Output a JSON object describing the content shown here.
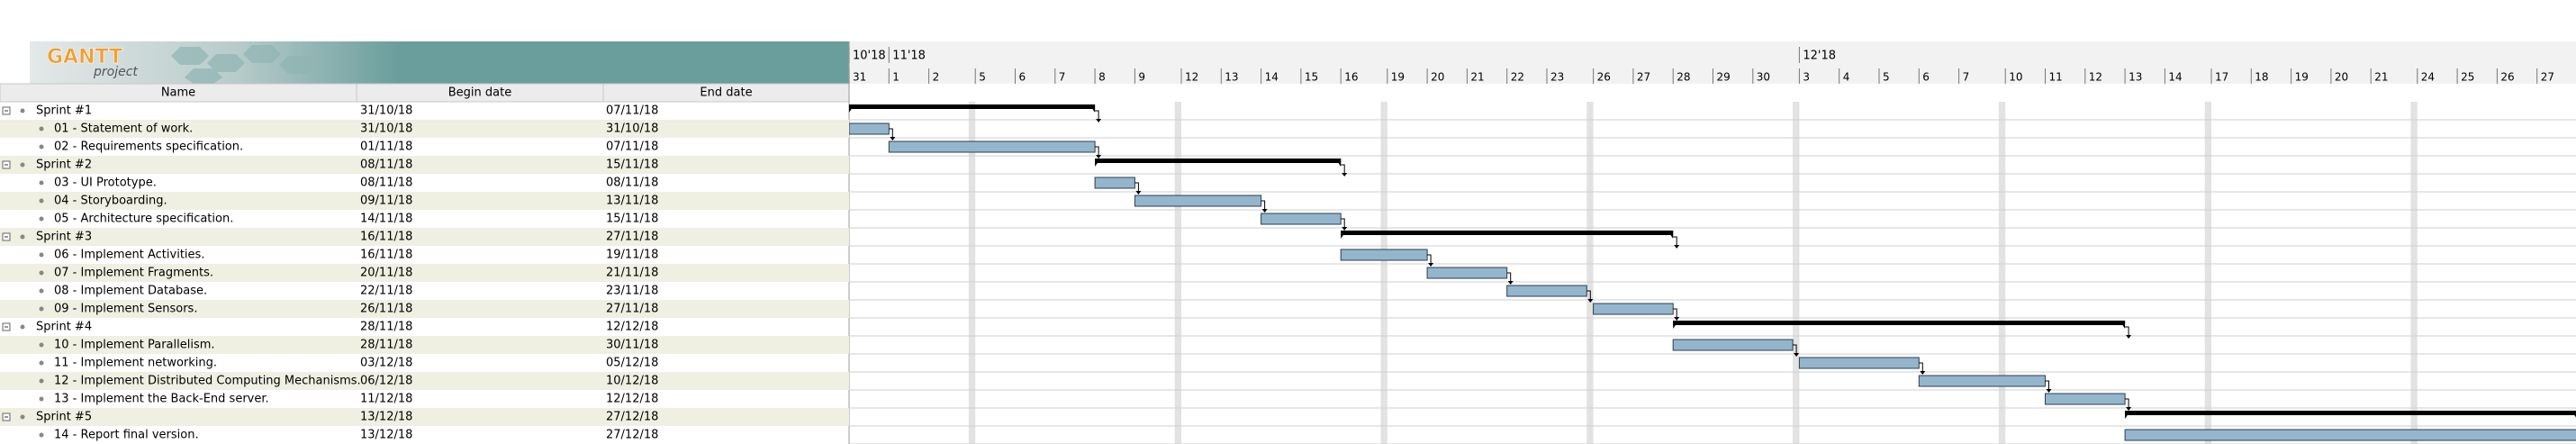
{
  "logo": {
    "name": "GANTT",
    "sub": "project"
  },
  "columns": [
    "Name",
    "Begin date",
    "End date"
  ],
  "timeline": {
    "months": [
      "10'18",
      "11'18",
      "12'18"
    ],
    "days": [
      "31",
      "1",
      "2",
      "5",
      "6",
      "7",
      "8",
      "9",
      "12",
      "13",
      "14",
      "15",
      "16",
      "19",
      "20",
      "21",
      "22",
      "23",
      "26",
      "27",
      "28",
      "29",
      "30",
      "3",
      "4",
      "5",
      "6",
      "7",
      "10",
      "11",
      "12",
      "13",
      "14",
      "17",
      "18",
      "19",
      "20",
      "21",
      "24",
      "25",
      "26",
      "27"
    ]
  },
  "rows": [
    {
      "name": "Sprint #1",
      "begin": "31/10/18",
      "end": "07/11/18",
      "summary": true
    },
    {
      "name": "01 - Statement of work.",
      "begin": "31/10/18",
      "end": "31/10/18",
      "summary": false
    },
    {
      "name": "02 - Requirements specification.",
      "begin": "01/11/18",
      "end": "07/11/18",
      "summary": false
    },
    {
      "name": "Sprint #2",
      "begin": "08/11/18",
      "end": "15/11/18",
      "summary": true
    },
    {
      "name": "03 - UI Prototype.",
      "begin": "08/11/18",
      "end": "08/11/18",
      "summary": false
    },
    {
      "name": "04 - Storyboarding.",
      "begin": "09/11/18",
      "end": "13/11/18",
      "summary": false
    },
    {
      "name": "05 - Architecture specification.",
      "begin": "14/11/18",
      "end": "15/11/18",
      "summary": false
    },
    {
      "name": "Sprint #3",
      "begin": "16/11/18",
      "end": "27/11/18",
      "summary": true
    },
    {
      "name": "06 - Implement Activities.",
      "begin": "16/11/18",
      "end": "19/11/18",
      "summary": false
    },
    {
      "name": "07 - Implement Fragments.",
      "begin": "20/11/18",
      "end": "21/11/18",
      "summary": false
    },
    {
      "name": "08 - Implement Database.",
      "begin": "22/11/18",
      "end": "23/11/18",
      "summary": false
    },
    {
      "name": "09 - Implement Sensors.",
      "begin": "26/11/18",
      "end": "27/11/18",
      "summary": false
    },
    {
      "name": "Sprint #4",
      "begin": "28/11/18",
      "end": "12/12/18",
      "summary": true
    },
    {
      "name": "10 - Implement Parallelism.",
      "begin": "28/11/18",
      "end": "30/11/18",
      "summary": false
    },
    {
      "name": "11 - Implement networking.",
      "begin": "03/12/18",
      "end": "05/12/18",
      "summary": false
    },
    {
      "name": "12 - Implement Distributed Computing Mechanisms.",
      "begin": "06/12/18",
      "end": "10/12/18",
      "summary": false
    },
    {
      "name": "13 - Implement the Back-End server.",
      "begin": "11/12/18",
      "end": "12/12/18",
      "summary": false
    },
    {
      "name": "Sprint #5",
      "begin": "13/12/18",
      "end": "27/12/18",
      "summary": true
    },
    {
      "name": "14 - Report final version.",
      "begin": "13/12/18",
      "end": "27/12/18",
      "summary": false
    }
  ]
}
